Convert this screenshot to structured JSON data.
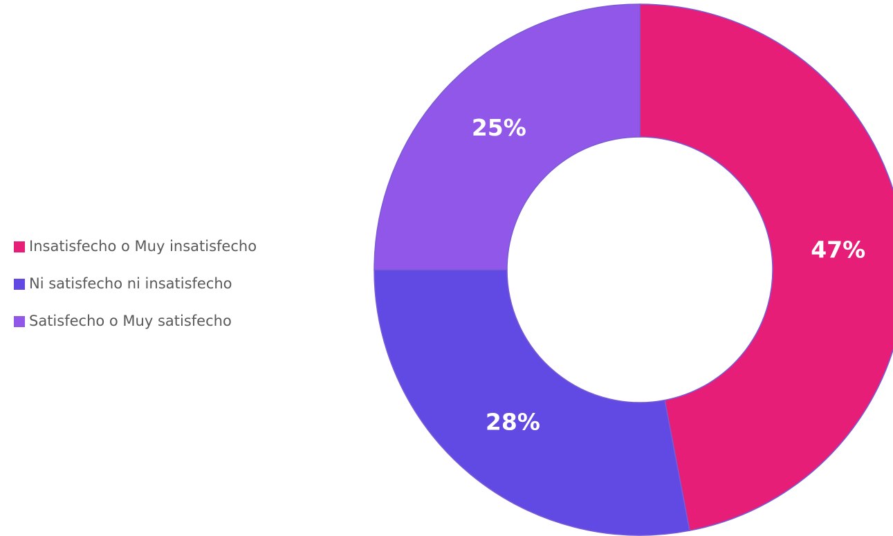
{
  "chart_data": {
    "type": "donut",
    "categories": [
      "Insatisfecho o Muy insatisfecho",
      "Ni satisfecho ni insatisfecho",
      "Satisfecho o Muy satisfecho"
    ],
    "values": [
      47,
      28,
      25
    ],
    "value_labels": [
      "47%",
      "28%",
      "25%"
    ],
    "colors": [
      "#e61e78",
      "#614ae3",
      "#9157e8"
    ],
    "legend": "left"
  }
}
